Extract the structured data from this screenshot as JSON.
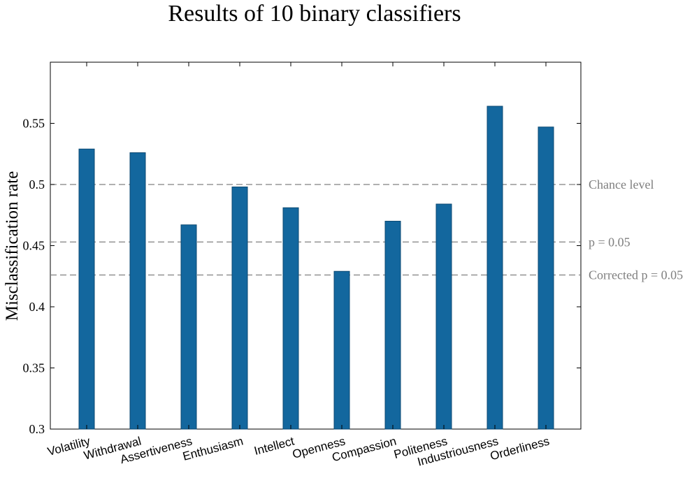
{
  "chart_data": {
    "type": "bar",
    "title": "Results of 10 binary classifiers",
    "ylabel": "Misclassification rate",
    "xlabel": "",
    "categories": [
      "Volatility",
      "Withdrawal",
      "Assertiveness",
      "Enthusiasm",
      "Intellect",
      "Openness",
      "Compassion",
      "Politeness",
      "Industriousness",
      "Orderliness"
    ],
    "values": [
      0.529,
      0.526,
      0.467,
      0.498,
      0.481,
      0.429,
      0.47,
      0.484,
      0.564,
      0.547
    ],
    "ylim": [
      0.3,
      0.6
    ],
    "yticks": [
      0.3,
      0.35,
      0.4,
      0.45,
      0.5,
      0.55
    ],
    "ytick_labels": [
      "0.3",
      "0.35",
      "0.4",
      "0.45",
      "0.5",
      "0.55"
    ],
    "bar_color": "#13679e",
    "reference_lines": [
      {
        "label": "Chance level",
        "value": 0.5
      },
      {
        "label": "p = 0.05",
        "value": 0.453
      },
      {
        "label": "Corrected p = 0.05",
        "value": 0.426
      }
    ],
    "reference_line_color": "#808080",
    "grid": false,
    "legend": "none"
  }
}
